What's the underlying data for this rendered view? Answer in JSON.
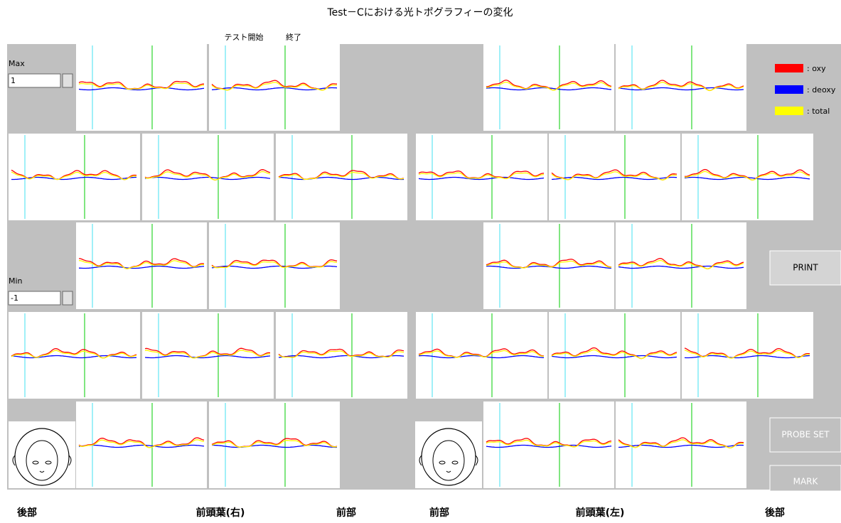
{
  "title": "Test－Cにおける光トポグラフィーの変化",
  "markers": {
    "start": "テスト開始",
    "end": "終了"
  },
  "controls": {
    "max_label": "Max",
    "max_value": "1",
    "min_label": "Min",
    "min_value": "-1"
  },
  "legend": [
    {
      "label": ": oxy",
      "color": "#ff0000"
    },
    {
      "label": ": deoxy",
      "color": "#0000ff"
    },
    {
      "label": ": total",
      "color": "#ffff00"
    }
  ],
  "buttons": {
    "print": "PRINT",
    "probe_set": "PROBE SET",
    "mark": "MARK"
  },
  "footer": [
    "後部",
    "前頭葉(右)",
    "前部",
    "前部",
    "前頭葉(左)",
    "後部"
  ]
}
